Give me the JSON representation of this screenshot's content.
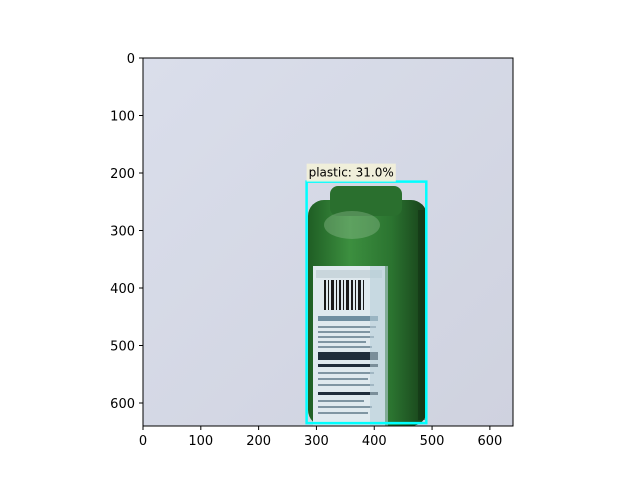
{
  "axes": {
    "x_ticks": [
      0,
      100,
      200,
      300,
      400,
      500,
      600
    ],
    "y_ticks": [
      0,
      100,
      200,
      300,
      400,
      500,
      600
    ],
    "x_range": [
      0,
      640
    ],
    "y_range": [
      0,
      640
    ],
    "y_inverted": true,
    "grid": false
  },
  "image": {
    "background_color": "#d9dce9",
    "bottle_color": "#2f7d32"
  },
  "detection": {
    "label": "plastic: 31.0%",
    "class": "plastic",
    "score": 31.0,
    "box": {
      "x1": 283,
      "y1": 215,
      "x2": 490,
      "y2": 635
    },
    "box_color": "#00ffff",
    "label_bg_color": "#f3f1d8"
  }
}
